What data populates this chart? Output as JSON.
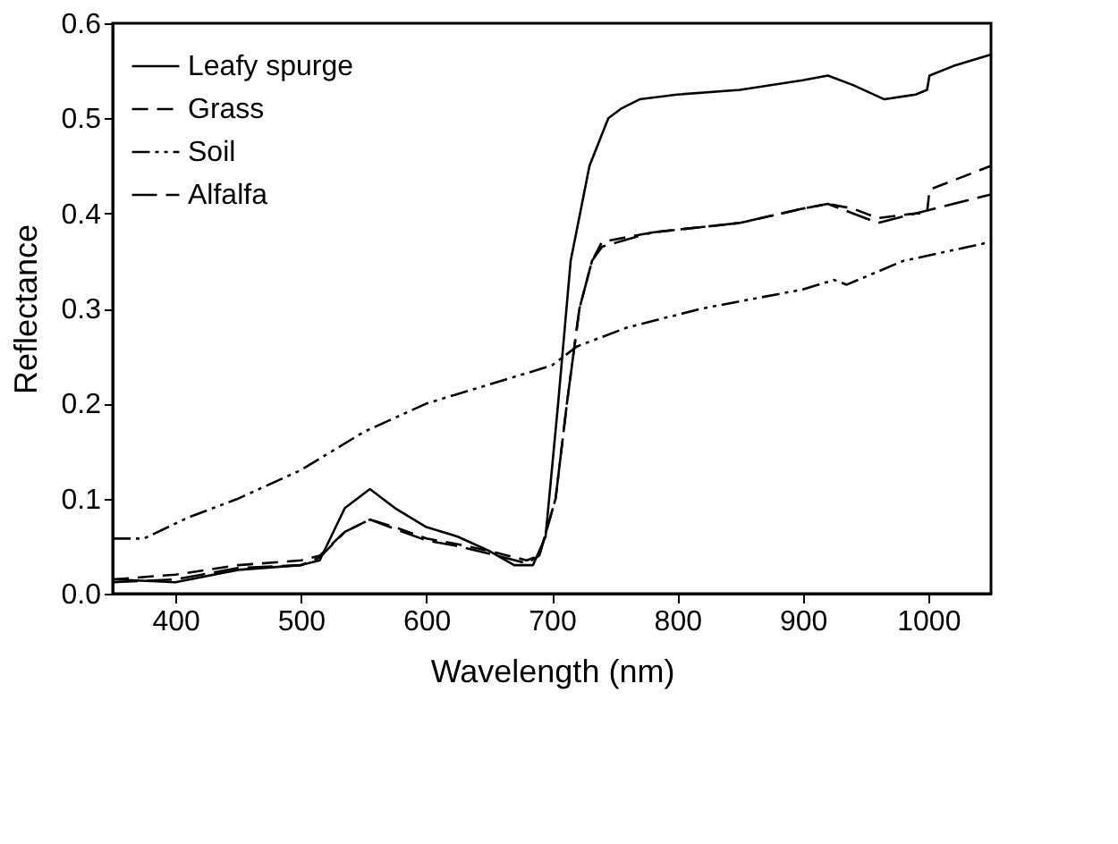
{
  "chart_data": {
    "type": "line",
    "xlabel": "Wavelength (nm)",
    "ylabel": "Reflectance",
    "xlim": [
      350,
      1050
    ],
    "xticks": [
      400,
      500,
      600,
      700,
      800,
      900,
      1000
    ],
    "ylim": [
      0,
      0.6
    ],
    "yticks": [
      {
        "value": 0,
        "label": "0.0"
      },
      0.1,
      0.2,
      0.3,
      0.4,
      0.5,
      0.6
    ],
    "grid": false,
    "legend": "top left",
    "marker": "none",
    "series": [
      {
        "name": "Leafy spurge",
        "color": "#000000",
        "line_style": "solid",
        "x": [
          350,
          400,
          450,
          500,
          515,
          535,
          555,
          575,
          600,
          625,
          650,
          670,
          685,
          695,
          705,
          715,
          730,
          745,
          755,
          770,
          800,
          850,
          900,
          920,
          940,
          965,
          990,
          999,
          1001,
          1020,
          1050
        ],
        "values": [
          0.015,
          0.012,
          0.025,
          0.03,
          0.035,
          0.09,
          0.11,
          0.09,
          0.07,
          0.06,
          0.045,
          0.03,
          0.03,
          0.06,
          0.2,
          0.35,
          0.45,
          0.5,
          0.51,
          0.52,
          0.525,
          0.53,
          0.54,
          0.545,
          0.535,
          0.52,
          0.525,
          0.53,
          0.545,
          0.555,
          0.567
        ]
      },
      {
        "name": "Grass",
        "color": "#000000",
        "line_style": "dashed",
        "x": [
          350,
          400,
          450,
          500,
          515,
          535,
          555,
          575,
          600,
          625,
          650,
          680,
          690,
          703,
          712,
          722,
          732,
          740,
          780,
          850,
          900,
          920,
          940,
          960,
          990,
          999,
          1001,
          1050
        ],
        "values": [
          0.015,
          0.02,
          0.03,
          0.035,
          0.04,
          0.065,
          0.078,
          0.07,
          0.058,
          0.052,
          0.045,
          0.035,
          0.04,
          0.1,
          0.2,
          0.3,
          0.35,
          0.37,
          0.38,
          0.39,
          0.405,
          0.41,
          0.405,
          0.395,
          0.4,
          0.4,
          0.425,
          0.45
        ]
      },
      {
        "name": "Soil",
        "color": "#000000",
        "line_style": "dashdotdot",
        "x": [
          350,
          375,
          410,
          450,
          500,
          550,
          600,
          650,
          700,
          720,
          760,
          820,
          900,
          925,
          935,
          980,
          1050
        ],
        "values": [
          0.058,
          0.058,
          0.08,
          0.1,
          0.13,
          0.17,
          0.2,
          0.22,
          0.24,
          0.26,
          0.28,
          0.3,
          0.32,
          0.33,
          0.325,
          0.35,
          0.37
        ]
      },
      {
        "name": "Alfalfa",
        "color": "#000000",
        "line_style": "longdash",
        "x": [
          350,
          400,
          450,
          500,
          515,
          535,
          555,
          575,
          600,
          625,
          650,
          680,
          690,
          703,
          712,
          722,
          732,
          740,
          780,
          850,
          900,
          920,
          940,
          960,
          990,
          1020,
          1050
        ],
        "values": [
          0.012,
          0.015,
          0.027,
          0.03,
          0.038,
          0.065,
          0.078,
          0.068,
          0.056,
          0.05,
          0.042,
          0.032,
          0.04,
          0.1,
          0.2,
          0.3,
          0.35,
          0.365,
          0.38,
          0.39,
          0.405,
          0.41,
          0.4,
          0.39,
          0.4,
          0.41,
          0.42
        ]
      }
    ]
  }
}
